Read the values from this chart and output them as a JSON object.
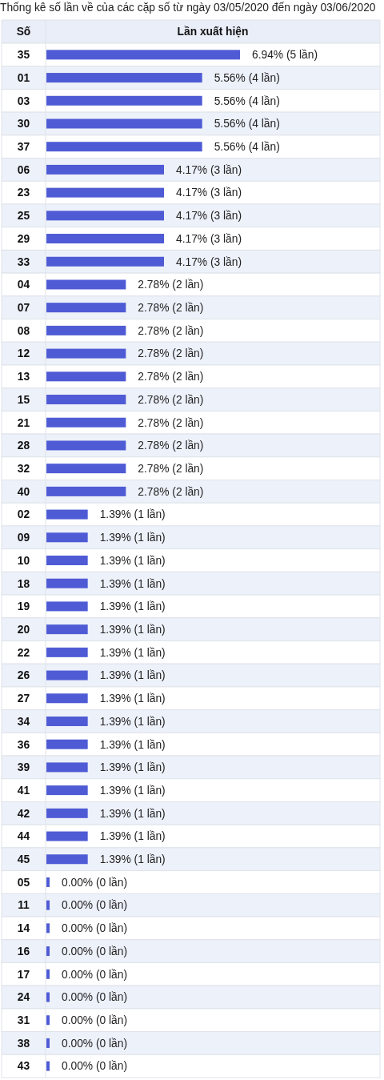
{
  "chart_data": {
    "type": "bar",
    "orientation": "horizontal",
    "title": "Thống kê số lần về của các cặp số từ ngày 03/05/2020 đến ngày 03/06/2020",
    "ylabel": "Số",
    "xlabel": "Lần xuất hiện",
    "tick_labels": "y",
    "color": "#4f5bd5",
    "categories": [
      "35",
      "01",
      "03",
      "30",
      "37",
      "06",
      "23",
      "25",
      "29",
      "33",
      "04",
      "07",
      "08",
      "12",
      "13",
      "15",
      "21",
      "28",
      "32",
      "40",
      "02",
      "09",
      "10",
      "18",
      "19",
      "20",
      "22",
      "26",
      "27",
      "34",
      "36",
      "39",
      "41",
      "42",
      "44",
      "45",
      "05",
      "11",
      "14",
      "16",
      "17",
      "24",
      "31",
      "38",
      "43"
    ],
    "values": [
      6.94,
      5.56,
      5.56,
      5.56,
      5.56,
      4.17,
      4.17,
      4.17,
      4.17,
      4.17,
      2.78,
      2.78,
      2.78,
      2.78,
      2.78,
      2.78,
      2.78,
      2.78,
      2.78,
      2.78,
      1.39,
      1.39,
      1.39,
      1.39,
      1.39,
      1.39,
      1.39,
      1.39,
      1.39,
      1.39,
      1.39,
      1.39,
      1.39,
      1.39,
      1.39,
      1.39,
      0,
      0,
      0,
      0,
      0,
      0,
      0,
      0,
      0
    ],
    "value_labels": [
      "6.94% (5 lần)",
      "5.56% (4 lần)",
      "5.56% (4 lần)",
      "5.56% (4 lần)",
      "5.56% (4 lần)",
      "4.17% (3 lần)",
      "4.17% (3 lần)",
      "4.17% (3 lần)",
      "4.17% (3 lần)",
      "4.17% (3 lần)",
      "2.78% (2 lần)",
      "2.78% (2 lần)",
      "2.78% (2 lần)",
      "2.78% (2 lần)",
      "2.78% (2 lần)",
      "2.78% (2 lần)",
      "2.78% (2 lần)",
      "2.78% (2 lần)",
      "2.78% (2 lần)",
      "2.78% (2 lần)",
      "1.39% (1 lần)",
      "1.39% (1 lần)",
      "1.39% (1 lần)",
      "1.39% (1 lần)",
      "1.39% (1 lần)",
      "1.39% (1 lần)",
      "1.39% (1 lần)",
      "1.39% (1 lần)",
      "1.39% (1 lần)",
      "1.39% (1 lần)",
      "1.39% (1 lần)",
      "1.39% (1 lần)",
      "1.39% (1 lần)",
      "1.39% (1 lần)",
      "1.39% (1 lần)",
      "1.39% (1 lần)",
      "0.00% (0 lần)",
      "0.00% (0 lần)",
      "0.00% (0 lần)",
      "0.00% (0 lần)",
      "0.00% (0 lần)",
      "0.00% (0 lần)",
      "0.00% (0 lần)",
      "0.00% (0 lần)",
      "0.00% (0 lần)"
    ]
  }
}
